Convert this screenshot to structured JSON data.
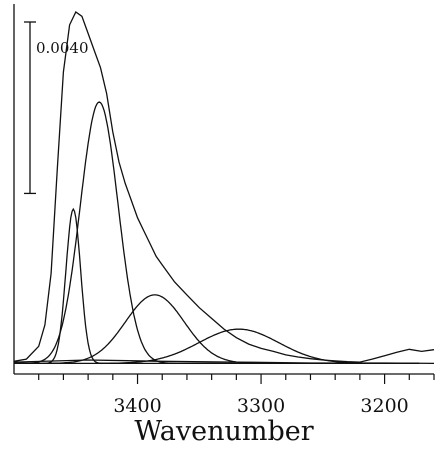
{
  "chart_data": {
    "type": "line",
    "title": "",
    "xlabel": "Wavenumber",
    "ylabel": "",
    "x_reversed": true,
    "xlim": [
      3500,
      3160
    ],
    "ylim": [
      -0.0002,
      0.0082
    ],
    "x_ticks": [
      3400,
      3300,
      3200
    ],
    "x_tick_labels": [
      "3400",
      "3300",
      "3200"
    ],
    "x_minor_step": 20,
    "scale_bar": {
      "label": "0.0040",
      "value": 0.004
    },
    "grid": false,
    "legend": "none",
    "series": [
      {
        "role": "spectrum",
        "x": [
          3500,
          3490,
          3480,
          3475,
          3470,
          3465,
          3460,
          3455,
          3450,
          3445,
          3440,
          3435,
          3430,
          3425,
          3420,
          3415,
          3410,
          3405,
          3400,
          3395,
          3390,
          3385,
          3380,
          3370,
          3360,
          3350,
          3340,
          3330,
          3320,
          3310,
          3300,
          3290,
          3280,
          3270,
          3260,
          3250,
          3240,
          3230,
          3220,
          3210,
          3200,
          3190,
          3180,
          3170,
          3160
        ],
        "y": [
          5e-05,
          0.0001,
          0.0004,
          0.0009,
          0.0021,
          0.0045,
          0.0068,
          0.0079,
          0.0082,
          0.0081,
          0.0077,
          0.0073,
          0.0069,
          0.0063,
          0.0054,
          0.0047,
          0.0042,
          0.0038,
          0.0034,
          0.0031,
          0.0028,
          0.0025,
          0.0023,
          0.0019,
          0.0016,
          0.0013,
          0.00105,
          0.0008,
          0.0006,
          0.00045,
          0.00035,
          0.00028,
          0.0002,
          0.00015,
          0.00011,
          8e-05,
          6e-05,
          4e-05,
          3e-05,
          0.0001,
          0.00018,
          0.00026,
          0.00033,
          0.00028,
          0.00032
        ]
      },
      {
        "role": "component",
        "shape": "gaussian",
        "center": 3452,
        "height": 0.0036,
        "hwhm": 7
      },
      {
        "role": "component",
        "shape": "gaussian",
        "center": 3431,
        "height": 0.0061,
        "hwhm": 18
      },
      {
        "role": "component",
        "shape": "gaussian",
        "center": 3386,
        "height": 0.0016,
        "hwhm": 28
      },
      {
        "role": "component",
        "shape": "gaussian",
        "center": 3318,
        "height": 0.0008,
        "hwhm": 38
      },
      {
        "role": "baseline",
        "x": [
          3500,
          3440,
          3380,
          3320,
          3260,
          3200,
          3160
        ],
        "y": [
          3e-05,
          8e-05,
          5e-05,
          3e-05,
          1e-05,
          1e-05,
          0.0
        ]
      }
    ]
  }
}
